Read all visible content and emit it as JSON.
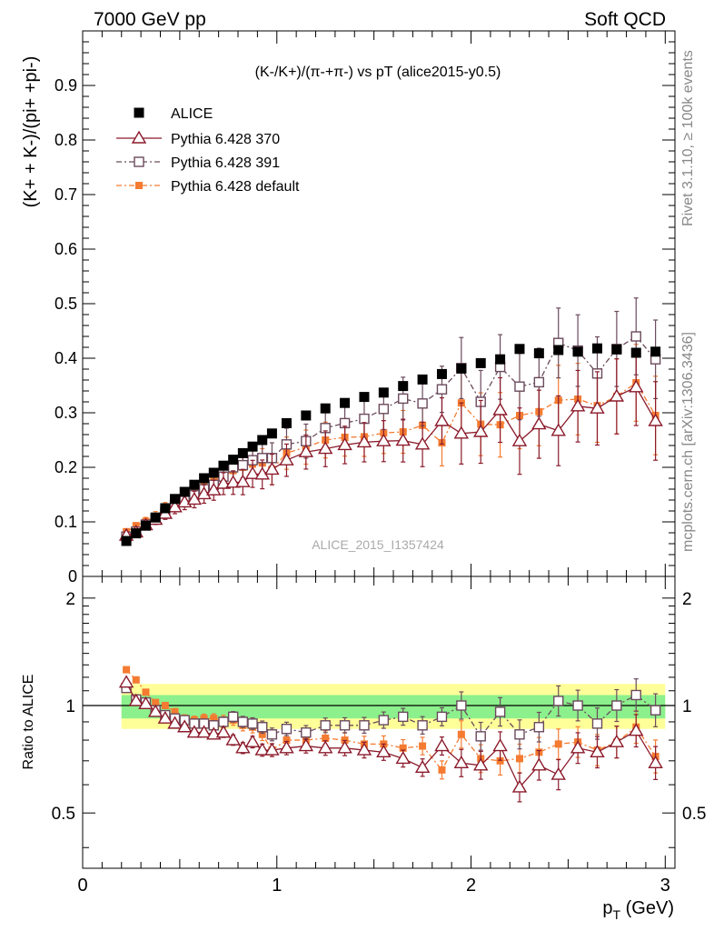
{
  "header": {
    "left": "7000 GeV pp",
    "right": "Soft QCD"
  },
  "side_labels": {
    "rivet": "Rivet 3.1.10, ≥ 100k events",
    "mcplots": "mcplots.cern.ch [arXiv:1306.3436]"
  },
  "watermark": "ALICE_2015_I1357424",
  "colors": {
    "alice": "#000000",
    "p370": "#8b1a2b",
    "p391": "#6b4a5c",
    "pdef": "#f47b31",
    "band_inner": "#8cf08c",
    "band_outer": "#ffff99"
  },
  "chart_data": [
    {
      "type": "scatter",
      "title": "(K-/K+)/(π-+π-) vs pT (alice2015-y0.5)",
      "ylabel": "(K+ + K-)/(pi+ +pi-)",
      "xlim": [
        0,
        3.05
      ],
      "ylim": [
        0,
        1.0
      ],
      "y_ticks": [
        "0",
        "0.1",
        "0.2",
        "0.3",
        "0.4",
        "0.5",
        "0.6",
        "0.7",
        "0.8",
        "0.9"
      ],
      "legend_position": "top-left",
      "x": [
        0.225,
        0.275,
        0.325,
        0.375,
        0.425,
        0.475,
        0.525,
        0.575,
        0.625,
        0.675,
        0.725,
        0.775,
        0.825,
        0.875,
        0.925,
        0.975,
        1.05,
        1.15,
        1.25,
        1.35,
        1.45,
        1.55,
        1.65,
        1.75,
        1.85,
        1.95,
        2.05,
        2.15,
        2.25,
        2.35,
        2.45,
        2.55,
        2.65,
        2.75,
        2.85,
        2.95
      ],
      "series": [
        {
          "name": "ALICE",
          "marker": "filled-square",
          "values": [
            0.065,
            0.079,
            0.093,
            0.108,
            0.125,
            0.142,
            0.155,
            0.168,
            0.18,
            0.19,
            0.203,
            0.214,
            0.226,
            0.238,
            0.25,
            0.262,
            0.281,
            0.295,
            0.308,
            0.318,
            0.329,
            0.337,
            0.349,
            0.361,
            0.371,
            0.381,
            0.391,
            0.398,
            0.417,
            0.409,
            0.415,
            0.412,
            0.418,
            0.416,
            0.41,
            0.412
          ]
        },
        {
          "name": "Pythia 6.428 370",
          "marker": "open-triangle",
          "values": [
            0.075,
            0.081,
            0.094,
            0.104,
            0.115,
            0.127,
            0.136,
            0.141,
            0.151,
            0.158,
            0.17,
            0.172,
            0.173,
            0.188,
            0.187,
            0.196,
            0.213,
            0.228,
            0.234,
            0.241,
            0.246,
            0.248,
            0.249,
            0.242,
            0.285,
            0.262,
            0.265,
            0.305,
            0.248,
            0.279,
            0.267,
            0.312,
            0.308,
            0.33,
            0.347,
            0.285
          ]
        },
        {
          "name": "Pythia 6.428 391",
          "marker": "open-square",
          "values": [
            0.073,
            0.082,
            0.095,
            0.105,
            0.118,
            0.131,
            0.141,
            0.149,
            0.16,
            0.168,
            0.183,
            0.2,
            0.204,
            0.213,
            0.217,
            0.217,
            0.242,
            0.248,
            0.272,
            0.281,
            0.289,
            0.307,
            0.326,
            0.317,
            0.343,
            0.382,
            0.32,
            0.384,
            0.348,
            0.356,
            0.428,
            0.414,
            0.372,
            0.417,
            0.44,
            0.398
          ]
        },
        {
          "name": "Pythia 6.428 default",
          "marker": "filled-square-small",
          "values": [
            0.082,
            0.093,
            0.101,
            0.11,
            0.125,
            0.136,
            0.143,
            0.153,
            0.166,
            0.175,
            0.184,
            0.194,
            0.2,
            0.206,
            0.208,
            0.196,
            0.226,
            0.237,
            0.25,
            0.255,
            0.256,
            0.263,
            0.265,
            0.277,
            0.245,
            0.318,
            0.279,
            0.278,
            0.295,
            0.302,
            0.323,
            0.325,
            0.313,
            0.33,
            0.355,
            0.295
          ]
        }
      ]
    },
    {
      "type": "scatter",
      "title": "",
      "xlabel": "p_T (GeV)",
      "ylabel": "Ratio to ALICE",
      "xlim": [
        0,
        3.05
      ],
      "ylim": [
        0.35,
        2.3
      ],
      "y_scale": "log",
      "y_ticks": [
        "0.5",
        "1",
        "2"
      ],
      "x_ticks": [
        "0",
        "1",
        "2",
        "3"
      ],
      "band_inner": [
        0.92,
        1.07
      ],
      "band_outer": [
        0.86,
        1.15
      ],
      "series": [
        {
          "name": "Pythia 6.428 370",
          "values": [
            1.16,
            1.03,
            1.01,
            0.96,
            0.92,
            0.89,
            0.87,
            0.84,
            0.84,
            0.83,
            0.84,
            0.8,
            0.76,
            0.79,
            0.75,
            0.75,
            0.76,
            0.77,
            0.76,
            0.76,
            0.75,
            0.74,
            0.71,
            0.67,
            0.77,
            0.69,
            0.68,
            0.77,
            0.59,
            0.68,
            0.64,
            0.76,
            0.74,
            0.79,
            0.85,
            0.69
          ]
        },
        {
          "name": "Pythia 6.428 391",
          "values": [
            1.12,
            1.04,
            1.02,
            0.97,
            0.94,
            0.92,
            0.91,
            0.89,
            0.89,
            0.88,
            0.9,
            0.93,
            0.9,
            0.89,
            0.87,
            0.83,
            0.86,
            0.84,
            0.88,
            0.88,
            0.88,
            0.91,
            0.93,
            0.88,
            0.93,
            1.0,
            0.82,
            0.96,
            0.83,
            0.87,
            1.03,
            1.0,
            0.89,
            1.0,
            1.07,
            0.97
          ]
        },
        {
          "name": "Pythia 6.428 default",
          "values": [
            1.26,
            1.18,
            1.09,
            1.02,
            1.0,
            0.96,
            0.92,
            0.91,
            0.92,
            0.92,
            0.91,
            0.91,
            0.88,
            0.87,
            0.83,
            0.75,
            0.8,
            0.8,
            0.81,
            0.8,
            0.78,
            0.78,
            0.76,
            0.77,
            0.66,
            0.83,
            0.71,
            0.7,
            0.71,
            0.74,
            0.78,
            0.79,
            0.75,
            0.79,
            0.87,
            0.72
          ]
        }
      ]
    }
  ]
}
